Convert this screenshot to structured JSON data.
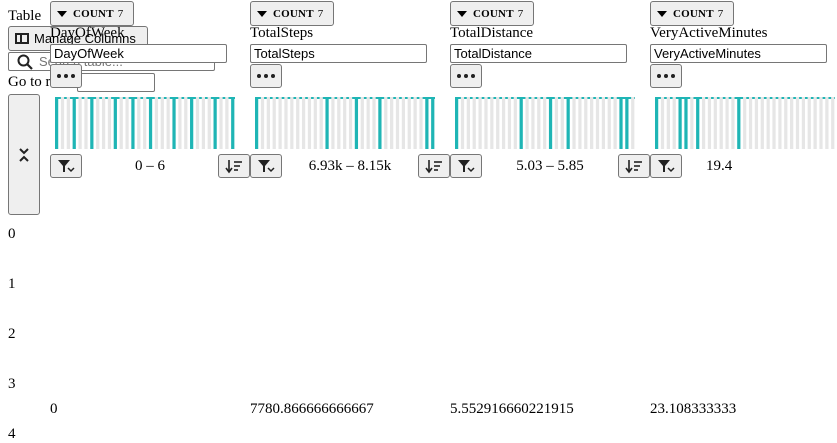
{
  "table": {
    "title": "Table",
    "manage_columns_label": "Manage Columns",
    "search_placeholder": "Search table...",
    "goto_label": "Go to row",
    "goto_value": ""
  },
  "columns": [
    {
      "name": "DayOfWeek",
      "filter_value": "DayOfWeek",
      "count_label": "COUNT",
      "count": "7",
      "range": "0 – 6",
      "cell_value": "0"
    },
    {
      "name": "TotalSteps",
      "filter_value": "TotalSteps",
      "count_label": "COUNT",
      "count": "7",
      "range": "6.93k – 8.15k",
      "cell_value": "7780.866666666667"
    },
    {
      "name": "TotalDistance",
      "filter_value": "TotalDistance",
      "count_label": "COUNT",
      "count": "7",
      "range": "5.03 – 5.85",
      "cell_value": "5.552916660221915"
    },
    {
      "name": "VeryActiveMinutes",
      "filter_value": "VeryActiveMinutes",
      "count_label": "COUNT",
      "count": "7",
      "range": "19.4",
      "cell_value": "23.108333333"
    }
  ],
  "row_indices": [
    "0",
    "1",
    "2",
    "3",
    "4"
  ],
  "colors": {
    "bar": "#1fb5b5",
    "bar_faint": "#e6e6e6"
  }
}
